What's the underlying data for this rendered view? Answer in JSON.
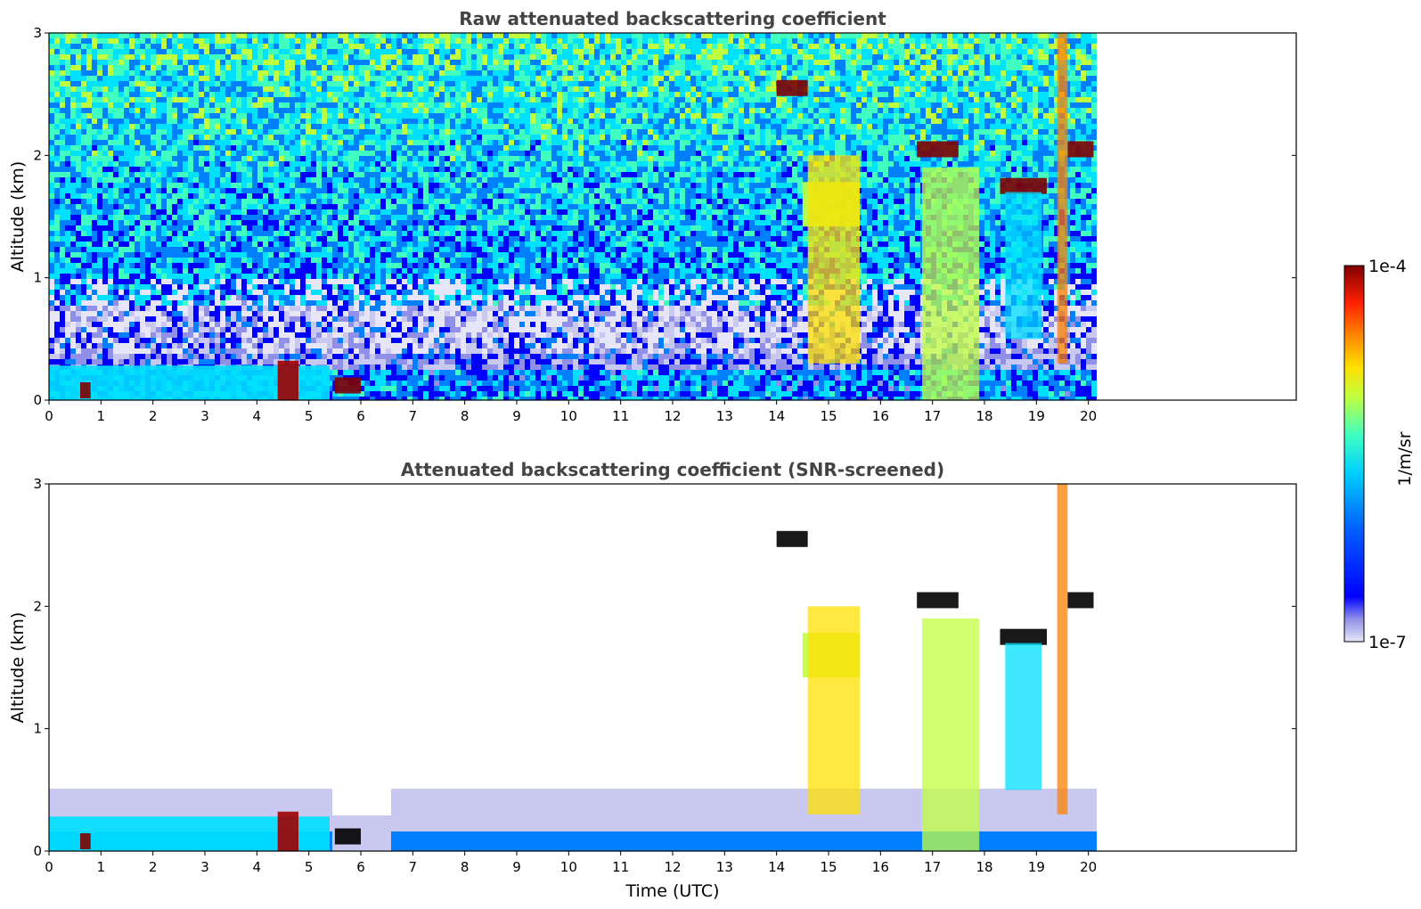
{
  "chart_data": [
    {
      "type": "heatmap",
      "title": "Raw attenuated backscattering coefficient",
      "xlabel": "",
      "ylabel": "Altitude (km)",
      "xlim": [
        0,
        24
      ],
      "ylim": [
        0,
        3
      ],
      "xticks": [
        0,
        1,
        2,
        3,
        4,
        5,
        6,
        7,
        8,
        9,
        10,
        11,
        12,
        13,
        14,
        15,
        16,
        17,
        18,
        19,
        20
      ],
      "yticks": [
        0,
        1,
        2,
        3
      ],
      "data_end_time": 20.1,
      "features": [
        {
          "t0": 0.0,
          "t1": 5.4,
          "alt": 0.1,
          "level": 0.45
        },
        {
          "t0": 0.6,
          "t1": 0.8,
          "alt": 0.08,
          "level": 0.95
        },
        {
          "t0": 4.4,
          "t1": 4.8,
          "alt": 0.14,
          "level": 0.9
        },
        {
          "t0": 5.5,
          "t1": 6.0,
          "alt": 0.12,
          "level": 1.0
        },
        {
          "t0": 14.5,
          "t1": 15.6,
          "alt": 1.6,
          "level": 0.6
        },
        {
          "t0": 16.7,
          "t1": 17.5,
          "alt": 2.05,
          "level": 1.0
        },
        {
          "t0": 18.3,
          "t1": 19.2,
          "alt": 1.75,
          "level": 1.0
        },
        {
          "t0": 19.6,
          "t1": 20.1,
          "alt": 2.05,
          "level": 1.0
        },
        {
          "t0": 14.0,
          "t1": 14.6,
          "alt": 2.55,
          "level": 1.0
        }
      ]
    },
    {
      "type": "heatmap",
      "title": "Attenuated backscattering coefficient (SNR-screened)",
      "xlabel": "Time (UTC)",
      "ylabel": "Altitude (km)",
      "xlim": [
        0,
        24
      ],
      "ylim": [
        0,
        3
      ],
      "xticks": [
        0,
        1,
        2,
        3,
        4,
        5,
        6,
        7,
        8,
        9,
        10,
        11,
        12,
        13,
        14,
        15,
        16,
        17,
        18,
        19,
        20
      ],
      "yticks": [
        0,
        1,
        2,
        3
      ],
      "data_end_time": 20.1,
      "saturated_color": "#000000"
    }
  ],
  "colorbar": {
    "label": "1/m/sr",
    "max_label": "1e-4",
    "min_label": "1e-7",
    "colormap": "jet",
    "colors": [
      "#e6e6f8",
      "#c8c8f0",
      "#9090e8",
      "#0000ff",
      "#0080ff",
      "#00e0ff",
      "#40ffc0",
      "#c0ff40",
      "#ffe000",
      "#ff8000",
      "#ff2000",
      "#a00000",
      "#800000"
    ]
  }
}
